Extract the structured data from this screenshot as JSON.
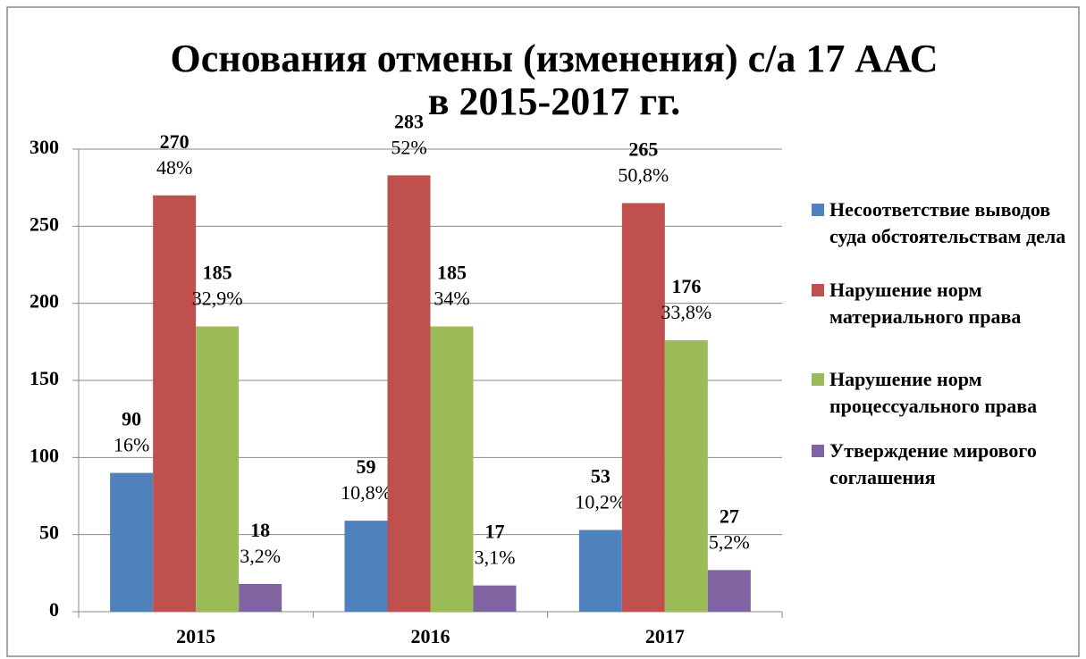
{
  "chart_data": {
    "type": "bar",
    "title": "Основания отмены (изменения) с/а 17 ААС\nв 2015-2017 гг.",
    "categories": [
      "2015",
      "2016",
      "2017"
    ],
    "series": [
      {
        "name": "Несоответствие выводов суда обстоятельствам дела",
        "color": "#4f81bd",
        "values": [
          90,
          59,
          53
        ],
        "shares": [
          "16%",
          "10,8%",
          "10,2%"
        ]
      },
      {
        "name": "Нарушение норм материального права",
        "color": "#c0504d",
        "values": [
          270,
          283,
          265
        ],
        "shares": [
          "48%",
          "52%",
          "50,8%"
        ]
      },
      {
        "name": "Нарушение норм процессуального права",
        "color": "#9bbb59",
        "values": [
          185,
          185,
          176
        ],
        "shares": [
          "32,9%",
          "34%",
          "33,8%"
        ]
      },
      {
        "name": "Утверждение мирового соглашения",
        "color": "#8064a2",
        "values": [
          18,
          17,
          27
        ],
        "shares": [
          "3,2%",
          "3,1%",
          "5,2%"
        ]
      }
    ],
    "ylim": [
      0,
      300
    ],
    "yticks": [
      0,
      50,
      100,
      150,
      200,
      250,
      300
    ],
    "grid": true,
    "legend": "right"
  }
}
